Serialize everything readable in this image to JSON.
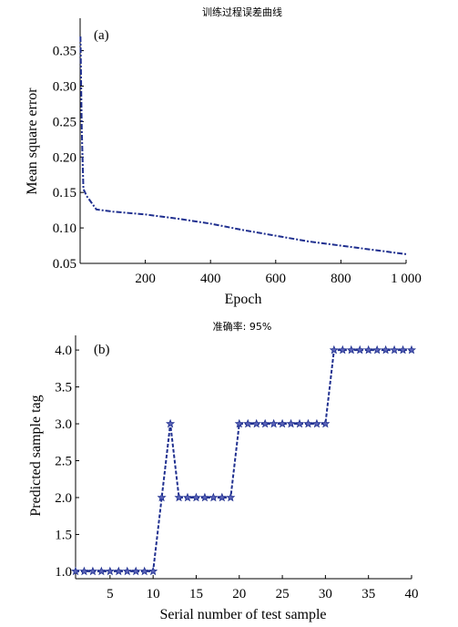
{
  "chart_data": [
    {
      "type": "line",
      "title": "训练过程误差曲线",
      "panel_label": "(a)",
      "xlabel": "Epoch",
      "ylabel": "Mean square error",
      "xlim": [
        0,
        1000
      ],
      "ylim": [
        0.05,
        0.37
      ],
      "x_ticks": [
        200,
        400,
        600,
        800,
        1000
      ],
      "x_tick_labels": [
        "200",
        "400",
        "600",
        "800",
        "1 000"
      ],
      "y_ticks": [
        0.05,
        0.1,
        0.15,
        0.2,
        0.25,
        0.3,
        0.35
      ],
      "y_tick_labels": [
        "0.05",
        "0.10",
        "0.15",
        "0.20",
        "0.25",
        "0.30",
        "0.35"
      ],
      "grid": false,
      "series": [
        {
          "line_style": "dash-dot",
          "color": "#1f2f8f",
          "x": [
            1,
            5,
            10,
            20,
            50,
            100,
            200,
            300,
            400,
            500,
            600,
            700,
            800,
            900,
            1000
          ],
          "y": [
            0.37,
            0.24,
            0.155,
            0.145,
            0.126,
            0.123,
            0.119,
            0.113,
            0.106,
            0.097,
            0.089,
            0.081,
            0.075,
            0.069,
            0.063
          ]
        }
      ]
    },
    {
      "type": "line",
      "title": "准确率: 95%",
      "panel_label": "(b)",
      "xlabel": "Serial number of test sample",
      "ylabel": "Predicted sample tag",
      "xlim": [
        1,
        40
      ],
      "ylim": [
        0.9,
        4.1
      ],
      "x_ticks": [
        5,
        10,
        15,
        20,
        25,
        30,
        35,
        40
      ],
      "x_tick_labels": [
        "5",
        "10",
        "15",
        "20",
        "25",
        "30",
        "35",
        "40"
      ],
      "y_ticks": [
        1.0,
        1.5,
        2.0,
        2.5,
        3.0,
        3.5,
        4.0
      ],
      "y_tick_labels": [
        "1.0",
        "1.5",
        "2.0",
        "2.5",
        "3.0",
        "3.5",
        "4.0"
      ],
      "grid": false,
      "series": [
        {
          "marker": "star",
          "line_style": "dashed",
          "color": "#1f2f8f",
          "x": [
            1,
            2,
            3,
            4,
            5,
            6,
            7,
            8,
            9,
            10,
            11,
            12,
            13,
            14,
            15,
            16,
            17,
            18,
            19,
            20,
            21,
            22,
            23,
            24,
            25,
            26,
            27,
            28,
            29,
            30,
            31,
            32,
            33,
            34,
            35,
            36,
            37,
            38,
            39,
            40
          ],
          "y": [
            1,
            1,
            1,
            1,
            1,
            1,
            1,
            1,
            1,
            1,
            2,
            3,
            2,
            2,
            2,
            2,
            2,
            2,
            2,
            3,
            3,
            3,
            3,
            3,
            3,
            3,
            3,
            3,
            3,
            3,
            4,
            4,
            4,
            4,
            4,
            4,
            4,
            4,
            4,
            4
          ]
        }
      ]
    }
  ]
}
